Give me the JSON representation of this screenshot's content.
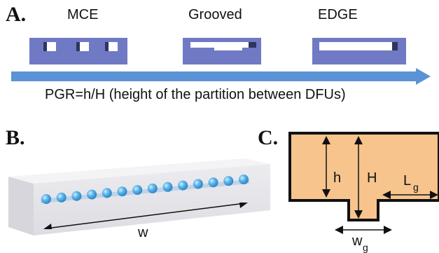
{
  "panels": {
    "a": {
      "label": "A.",
      "designs": [
        {
          "name": "MCE"
        },
        {
          "name": "Grooved"
        },
        {
          "name": "EDGE"
        }
      ],
      "arrow_caption": "PGR=h/H (height of the partition between DFUs)"
    },
    "b": {
      "label": "B.",
      "width_symbol": "w"
    },
    "c": {
      "label": "C.",
      "h_symbol": "h",
      "H_symbol": "H",
      "L_symbol": "L",
      "L_sub": "g",
      "w_symbol": "w",
      "w_sub": "g"
    }
  },
  "colors": {
    "channel_blue": "#6f79c4",
    "arrow_blue": "#5b93d6",
    "droplet_blue": "#5ab4ea",
    "chamber_orange": "#f7c48d",
    "block_gray": "#e6e6ea"
  }
}
